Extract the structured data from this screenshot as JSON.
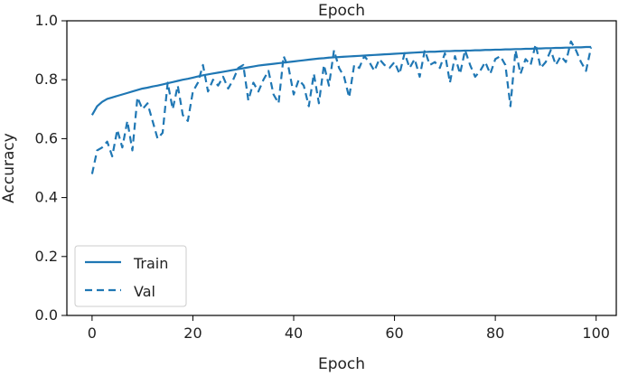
{
  "chart_data": {
    "type": "line",
    "title": "Epoch",
    "xlabel": "Epoch",
    "ylabel": "Accuracy",
    "xlim": [
      -5,
      104
    ],
    "ylim": [
      0.0,
      1.0
    ],
    "xticks": [
      0,
      20,
      40,
      60,
      80,
      100
    ],
    "yticks": [
      0.0,
      0.2,
      0.4,
      0.6,
      0.8,
      1.0
    ],
    "grid": false,
    "legend_position": "lower-left",
    "colors": {
      "series": "#1f77b4",
      "axes": "#000000",
      "legend_border": "#cccccc"
    },
    "series": [
      {
        "name": "Train",
        "style": "solid",
        "x": [
          0,
          1,
          2,
          3,
          4,
          5,
          6,
          7,
          8,
          9,
          10,
          11,
          12,
          13,
          14,
          15,
          16,
          17,
          18,
          19,
          20,
          21,
          22,
          23,
          24,
          25,
          26,
          27,
          28,
          29,
          30,
          31,
          32,
          33,
          34,
          35,
          36,
          37,
          38,
          39,
          40,
          41,
          42,
          43,
          44,
          45,
          46,
          47,
          48,
          49,
          50,
          51,
          52,
          53,
          54,
          55,
          56,
          57,
          58,
          59,
          60,
          61,
          62,
          63,
          64,
          65,
          66,
          67,
          68,
          69,
          70,
          71,
          72,
          73,
          74,
          75,
          76,
          77,
          78,
          79,
          80,
          81,
          82,
          83,
          84,
          85,
          86,
          87,
          88,
          89,
          90,
          91,
          92,
          93,
          94,
          95,
          96,
          97,
          98,
          99
        ],
        "values": [
          0.68,
          0.71,
          0.725,
          0.735,
          0.74,
          0.745,
          0.75,
          0.755,
          0.76,
          0.765,
          0.77,
          0.773,
          0.777,
          0.78,
          0.784,
          0.788,
          0.792,
          0.796,
          0.8,
          0.803,
          0.807,
          0.811,
          0.815,
          0.818,
          0.821,
          0.824,
          0.827,
          0.83,
          0.833,
          0.836,
          0.839,
          0.842,
          0.845,
          0.848,
          0.85,
          0.852,
          0.854,
          0.856,
          0.858,
          0.86,
          0.862,
          0.864,
          0.866,
          0.868,
          0.87,
          0.872,
          0.873,
          0.875,
          0.876,
          0.877,
          0.878,
          0.879,
          0.88,
          0.881,
          0.882,
          0.883,
          0.884,
          0.885,
          0.886,
          0.887,
          0.888,
          0.889,
          0.89,
          0.891,
          0.892,
          0.893,
          0.894,
          0.895,
          0.895,
          0.896,
          0.897,
          0.897,
          0.898,
          0.898,
          0.899,
          0.899,
          0.9,
          0.9,
          0.901,
          0.901,
          0.902,
          0.902,
          0.903,
          0.903,
          0.904,
          0.904,
          0.905,
          0.905,
          0.906,
          0.906,
          0.907,
          0.907,
          0.908,
          0.908,
          0.909,
          0.909,
          0.91,
          0.91,
          0.911,
          0.911
        ]
      },
      {
        "name": "Val",
        "style": "dashed",
        "x": [
          0,
          1,
          2,
          3,
          4,
          5,
          6,
          7,
          8,
          9,
          10,
          11,
          12,
          13,
          14,
          15,
          16,
          17,
          18,
          19,
          20,
          21,
          22,
          23,
          24,
          25,
          26,
          27,
          28,
          29,
          30,
          31,
          32,
          33,
          34,
          35,
          36,
          37,
          38,
          39,
          40,
          41,
          42,
          43,
          44,
          45,
          46,
          47,
          48,
          49,
          50,
          51,
          52,
          53,
          54,
          55,
          56,
          57,
          58,
          59,
          60,
          61,
          62,
          63,
          64,
          65,
          66,
          67,
          68,
          69,
          70,
          71,
          72,
          73,
          74,
          75,
          76,
          77,
          78,
          79,
          80,
          81,
          82,
          83,
          84,
          85,
          86,
          87,
          88,
          89,
          90,
          91,
          92,
          93,
          94,
          95,
          96,
          97,
          98,
          99
        ],
        "values": [
          0.48,
          0.56,
          0.57,
          0.59,
          0.54,
          0.63,
          0.57,
          0.66,
          0.56,
          0.74,
          0.7,
          0.72,
          0.66,
          0.6,
          0.62,
          0.79,
          0.7,
          0.78,
          0.68,
          0.66,
          0.76,
          0.79,
          0.85,
          0.76,
          0.8,
          0.78,
          0.81,
          0.77,
          0.8,
          0.84,
          0.85,
          0.73,
          0.79,
          0.76,
          0.8,
          0.83,
          0.75,
          0.72,
          0.88,
          0.84,
          0.75,
          0.8,
          0.78,
          0.71,
          0.82,
          0.72,
          0.85,
          0.78,
          0.9,
          0.84,
          0.81,
          0.74,
          0.85,
          0.84,
          0.88,
          0.86,
          0.83,
          0.87,
          0.85,
          0.84,
          0.86,
          0.82,
          0.89,
          0.84,
          0.87,
          0.81,
          0.9,
          0.85,
          0.86,
          0.84,
          0.89,
          0.79,
          0.88,
          0.82,
          0.9,
          0.85,
          0.81,
          0.83,
          0.86,
          0.82,
          0.87,
          0.88,
          0.85,
          0.71,
          0.9,
          0.82,
          0.87,
          0.85,
          0.92,
          0.84,
          0.86,
          0.9,
          0.85,
          0.88,
          0.86,
          0.93,
          0.9,
          0.86,
          0.83,
          0.91
        ]
      }
    ]
  }
}
